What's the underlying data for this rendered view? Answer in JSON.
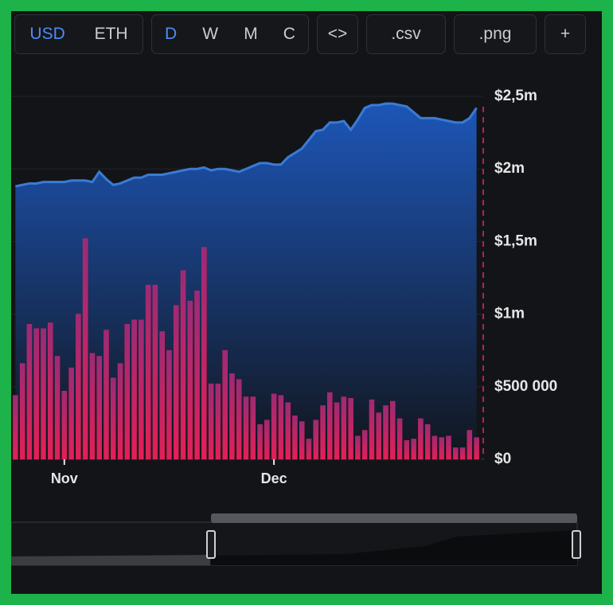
{
  "toolbar": {
    "groups": [
      [
        "USD",
        "ETH"
      ],
      [
        "D",
        "W",
        "M",
        "C"
      ],
      [
        "<>"
      ],
      [
        ".csv"
      ],
      [
        ".png"
      ],
      [
        "+"
      ]
    ]
  },
  "chart_data": {
    "type": "combo",
    "categories": [
      null,
      null,
      null,
      null,
      null,
      null,
      null,
      "Nov",
      null,
      null,
      null,
      null,
      null,
      null,
      null,
      null,
      null,
      null,
      null,
      null,
      null,
      null,
      null,
      null,
      null,
      null,
      null,
      null,
      null,
      null,
      null,
      null,
      null,
      null,
      null,
      null,
      null,
      "Dec",
      null,
      null,
      null,
      null,
      null,
      null,
      null,
      null,
      null,
      null,
      null,
      null,
      null,
      null,
      null,
      null,
      null,
      null,
      null,
      null,
      null,
      null,
      null,
      null,
      null,
      null,
      null,
      null,
      null
    ],
    "series": [
      {
        "type": "area",
        "color": "#3a7bd5",
        "values": [
          1880000,
          1890000,
          1900000,
          1900000,
          1910000,
          1910000,
          1910000,
          1910000,
          1920000,
          1920000,
          1920000,
          1910000,
          1980000,
          1930000,
          1890000,
          1900000,
          1920000,
          1940000,
          1940000,
          1960000,
          1960000,
          1960000,
          1970000,
          1980000,
          1990000,
          2000000,
          2000000,
          2010000,
          1990000,
          2000000,
          2000000,
          1990000,
          1980000,
          2000000,
          2020000,
          2040000,
          2040000,
          2030000,
          2030000,
          2080000,
          2110000,
          2140000,
          2200000,
          2260000,
          2270000,
          2320000,
          2320000,
          2330000,
          2270000,
          2340000,
          2420000,
          2440000,
          2440000,
          2450000,
          2450000,
          2440000,
          2430000,
          2390000,
          2350000,
          2350000,
          2350000,
          2340000,
          2330000,
          2320000,
          2320000,
          2350000,
          2420000
        ]
      },
      {
        "type": "bar",
        "color": "#d6245c",
        "values": [
          440000,
          660000,
          930000,
          900000,
          900000,
          940000,
          710000,
          470000,
          630000,
          1000000,
          1520000,
          730000,
          710000,
          890000,
          560000,
          660000,
          930000,
          960000,
          960000,
          1200000,
          1200000,
          880000,
          750000,
          1060000,
          1300000,
          1090000,
          1160000,
          1460000,
          520000,
          520000,
          750000,
          590000,
          550000,
          430000,
          430000,
          240000,
          270000,
          450000,
          440000,
          390000,
          300000,
          260000,
          140000,
          270000,
          370000,
          460000,
          390000,
          430000,
          420000,
          160000,
          200000,
          410000,
          320000,
          370000,
          400000,
          280000,
          130000,
          140000,
          280000,
          240000,
          160000,
          150000,
          160000,
          80000,
          80000,
          200000,
          150000
        ]
      }
    ],
    "ylim": [
      0,
      2500000
    ],
    "yticks": [
      {
        "value": 0,
        "label": "$0"
      },
      {
        "value": 500000,
        "label": "$500 000"
      },
      {
        "value": 1000000,
        "label": "$1m"
      },
      {
        "value": 1500000,
        "label": "$1,5m"
      },
      {
        "value": 2000000,
        "label": "$2m"
      },
      {
        "value": 2500000,
        "label": "$2,5m"
      }
    ],
    "grid": true
  }
}
